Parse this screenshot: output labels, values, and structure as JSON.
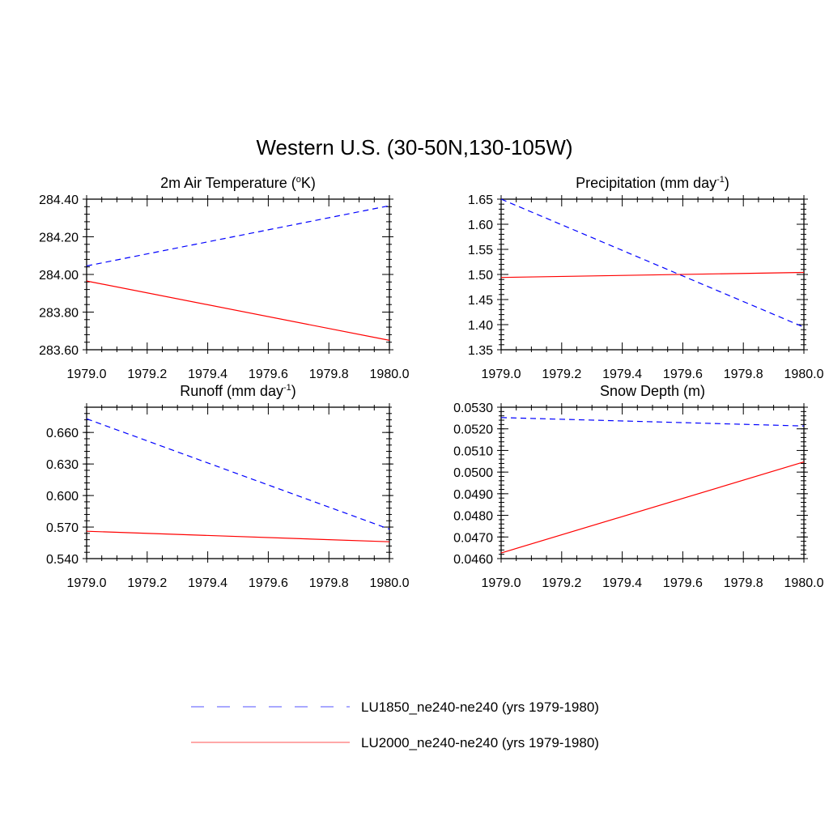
{
  "figure": {
    "title": "Western U.S. (30-50N,130-105W)"
  },
  "colors": {
    "LU1850": "#0000ff",
    "LU2000": "#ff0000",
    "axis": "#000000"
  },
  "legend": {
    "placement": "bottom-center",
    "entries": [
      {
        "label": "LU1850_ne240-ne240 (yrs 1979-1980)",
        "style": "dashed",
        "color": "#0000ff"
      },
      {
        "label": "LU2000_ne240-ne240 (yrs 1979-1980)",
        "style": "solid",
        "color": "#ff0000"
      }
    ]
  },
  "chart_data": [
    {
      "type": "line",
      "title_main": "2m Air Temperature (",
      "title_sup": "o",
      "title_tail": "K)",
      "xlim": [
        1979.0,
        1980.0
      ],
      "xticks": [
        "1979.0",
        "1979.2",
        "1979.4",
        "1979.6",
        "1979.8",
        "1980.0"
      ],
      "ylim": [
        283.6,
        284.4
      ],
      "yticks": [
        "283.60",
        "283.80",
        "284.00",
        "284.20",
        "284.40"
      ],
      "grid": false,
      "series": [
        {
          "name": "LU1850_ne240-ne240 (yrs 1979-1980)",
          "style": "dashed",
          "x": [
            1979.0,
            1980.0
          ],
          "y": [
            284.045,
            284.365
          ]
        },
        {
          "name": "LU2000_ne240-ne240 (yrs 1979-1980)",
          "style": "solid",
          "x": [
            1979.0,
            1980.0
          ],
          "y": [
            283.965,
            283.65
          ]
        }
      ]
    },
    {
      "type": "line",
      "title_main": "Precipitation (mm day",
      "title_sup": "-1",
      "title_tail": ")",
      "xlim": [
        1979.0,
        1980.0
      ],
      "xticks": [
        "1979.0",
        "1979.2",
        "1979.4",
        "1979.6",
        "1979.8",
        "1980.0"
      ],
      "ylim": [
        1.35,
        1.65
      ],
      "yticks": [
        "1.35",
        "1.40",
        "1.45",
        "1.50",
        "1.55",
        "1.60",
        "1.65"
      ],
      "grid": false,
      "series": [
        {
          "name": "LU1850_ne240-ne240 (yrs 1979-1980)",
          "style": "dashed",
          "x": [
            1979.0,
            1980.0
          ],
          "y": [
            1.65,
            1.395
          ]
        },
        {
          "name": "LU2000_ne240-ne240 (yrs 1979-1980)",
          "style": "solid",
          "x": [
            1979.0,
            1980.0
          ],
          "y": [
            1.494,
            1.504
          ]
        }
      ]
    },
    {
      "type": "line",
      "title_main": "Runoff (mm day",
      "title_sup": "-1",
      "title_tail": ")",
      "xlim": [
        1979.0,
        1980.0
      ],
      "xticks": [
        "1979.0",
        "1979.2",
        "1979.4",
        "1979.6",
        "1979.8",
        "1980.0"
      ],
      "ylim": [
        0.54,
        0.684
      ],
      "yticks": [
        "0.540",
        "0.570",
        "0.600",
        "0.630",
        "0.660"
      ],
      "grid": false,
      "series": [
        {
          "name": "LU1850_ne240-ne240 (yrs 1979-1980)",
          "style": "dashed",
          "x": [
            1979.0,
            1980.0
          ],
          "y": [
            0.673,
            0.568
          ]
        },
        {
          "name": "LU2000_ne240-ne240 (yrs 1979-1980)",
          "style": "solid",
          "x": [
            1979.0,
            1980.0
          ],
          "y": [
            0.566,
            0.556
          ]
        }
      ]
    },
    {
      "type": "line",
      "title_main": "Snow Depth (m)",
      "title_sup": "",
      "title_tail": "",
      "xlim": [
        1979.0,
        1980.0
      ],
      "xticks": [
        "1979.0",
        "1979.2",
        "1979.4",
        "1979.6",
        "1979.8",
        "1980.0"
      ],
      "ylim": [
        0.046,
        0.053
      ],
      "yticks": [
        "0.0460",
        "0.0470",
        "0.0480",
        "0.0490",
        "0.0500",
        "0.0510",
        "0.0520",
        "0.0530"
      ],
      "grid": false,
      "series": [
        {
          "name": "LU1850_ne240-ne240 (yrs 1979-1980)",
          "style": "dashed",
          "x": [
            1979.0,
            1980.0
          ],
          "y": [
            0.05252,
            0.05213
          ]
        },
        {
          "name": "LU2000_ne240-ne240 (yrs 1979-1980)",
          "style": "solid",
          "x": [
            1979.0,
            1980.0
          ],
          "y": [
            0.04626,
            0.05047
          ]
        }
      ]
    }
  ]
}
